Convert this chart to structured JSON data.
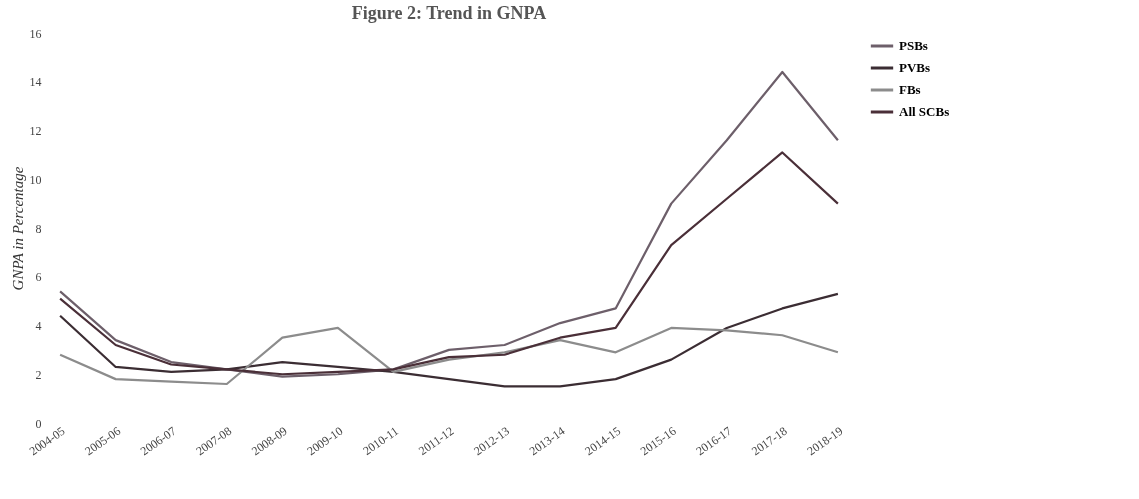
{
  "chart_data": {
    "type": "line",
    "title": "Figure 2: Trend in GNPA",
    "ylabel": "GNPA in Percentage",
    "categories": [
      "2004-05",
      "2005-06",
      "2006-07",
      "2007-08",
      "2008-09",
      "2009-10",
      "2010-11",
      "2011-12",
      "2012-13",
      "2013-14",
      "2014-15",
      "2015-16",
      "2016-17",
      "2017-18",
      "2018-19"
    ],
    "series": [
      {
        "name": "PSBs",
        "color": "#6d5f6a",
        "values": [
          5.4,
          3.4,
          2.5,
          2.2,
          1.9,
          2.0,
          2.2,
          3.0,
          3.2,
          4.1,
          4.7,
          9.0,
          11.6,
          14.4,
          11.6
        ]
      },
      {
        "name": "PVBs",
        "color": "#3b2d33",
        "values": [
          4.4,
          2.3,
          2.1,
          2.2,
          2.5,
          2.3,
          2.1,
          1.8,
          1.5,
          1.5,
          1.8,
          2.6,
          3.9,
          4.7,
          5.3
        ]
      },
      {
        "name": "FBs",
        "color": "#8c8c8c",
        "values": [
          2.8,
          1.8,
          1.7,
          1.6,
          3.5,
          3.9,
          2.1,
          2.6,
          2.9,
          3.4,
          2.9,
          3.9,
          3.8,
          3.6,
          2.9
        ]
      },
      {
        "name": "All SCBs",
        "color": "#4a2f38",
        "values": [
          5.1,
          3.2,
          2.4,
          2.2,
          2.0,
          2.1,
          2.2,
          2.7,
          2.8,
          3.5,
          3.9,
          7.3,
          9.2,
          11.1,
          9.0
        ]
      }
    ],
    "ylim": [
      0,
      16
    ],
    "yticks": [
      0,
      2,
      4,
      6,
      8,
      10,
      12,
      14,
      16
    ],
    "grid": false,
    "legend": "right",
    "line_style": "solid",
    "marker": "none"
  }
}
